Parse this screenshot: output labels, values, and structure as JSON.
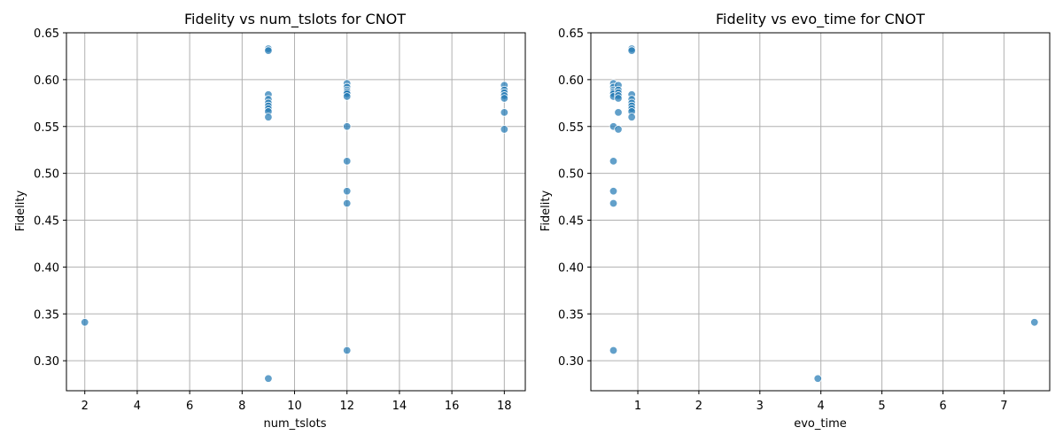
{
  "colors": {
    "marker": "#1f77b4",
    "grid": "#b0b0b0",
    "frame": "#000000"
  },
  "chart_data": [
    {
      "type": "scatter",
      "title": "Fidelity vs num_tslots for CNOT",
      "xlabel": "num_tslots",
      "ylabel": "Fidelity",
      "xlim": [
        1.3,
        18.8
      ],
      "ylim": [
        0.268,
        0.65
      ],
      "xticks": [
        2,
        4,
        6,
        8,
        10,
        12,
        14,
        16,
        18
      ],
      "yticks": [
        0.3,
        0.35,
        0.4,
        0.45,
        0.5,
        0.55,
        0.6,
        0.65
      ],
      "ytick_labels": [
        "0.30",
        "0.35",
        "0.40",
        "0.45",
        "0.50",
        "0.55",
        "0.60",
        "0.65"
      ],
      "grid": true,
      "marker_alpha": 0.7,
      "points": [
        [
          2,
          0.341
        ],
        [
          9,
          0.633
        ],
        [
          9,
          0.631
        ],
        [
          9,
          0.584
        ],
        [
          9,
          0.579
        ],
        [
          9,
          0.575
        ],
        [
          9,
          0.572
        ],
        [
          9,
          0.569
        ],
        [
          9,
          0.566
        ],
        [
          9,
          0.56
        ],
        [
          9,
          0.281
        ],
        [
          12,
          0.596
        ],
        [
          12,
          0.592
        ],
        [
          12,
          0.589
        ],
        [
          12,
          0.587
        ],
        [
          12,
          0.585
        ],
        [
          12,
          0.582
        ],
        [
          12,
          0.55
        ],
        [
          12,
          0.513
        ],
        [
          12,
          0.481
        ],
        [
          12,
          0.468
        ],
        [
          12,
          0.311
        ],
        [
          18,
          0.594
        ],
        [
          18,
          0.589
        ],
        [
          18,
          0.586
        ],
        [
          18,
          0.583
        ],
        [
          18,
          0.58
        ],
        [
          18,
          0.565
        ],
        [
          18,
          0.547
        ]
      ]
    },
    {
      "type": "scatter",
      "title": "Fidelity vs evo_time for CNOT",
      "xlabel": "evo_time",
      "ylabel": "Fidelity",
      "xlim": [
        0.23,
        7.75
      ],
      "ylim": [
        0.268,
        0.65
      ],
      "xticks": [
        1,
        2,
        3,
        4,
        5,
        6,
        7
      ],
      "yticks": [
        0.3,
        0.35,
        0.4,
        0.45,
        0.5,
        0.55,
        0.6,
        0.65
      ],
      "ytick_labels": [
        "0.30",
        "0.35",
        "0.40",
        "0.45",
        "0.50",
        "0.55",
        "0.60",
        "0.65"
      ],
      "grid": true,
      "marker_alpha": 0.7,
      "points": [
        [
          7.5,
          0.341
        ],
        [
          3.95,
          0.281
        ],
        [
          0.9,
          0.633
        ],
        [
          0.9,
          0.631
        ],
        [
          0.9,
          0.584
        ],
        [
          0.9,
          0.579
        ],
        [
          0.9,
          0.575
        ],
        [
          0.9,
          0.572
        ],
        [
          0.9,
          0.569
        ],
        [
          0.9,
          0.566
        ],
        [
          0.9,
          0.56
        ],
        [
          0.6,
          0.596
        ],
        [
          0.6,
          0.592
        ],
        [
          0.6,
          0.589
        ],
        [
          0.6,
          0.587
        ],
        [
          0.6,
          0.585
        ],
        [
          0.6,
          0.582
        ],
        [
          0.6,
          0.55
        ],
        [
          0.6,
          0.513
        ],
        [
          0.6,
          0.481
        ],
        [
          0.6,
          0.468
        ],
        [
          0.6,
          0.311
        ],
        [
          0.68,
          0.594
        ],
        [
          0.68,
          0.589
        ],
        [
          0.68,
          0.586
        ],
        [
          0.68,
          0.583
        ],
        [
          0.68,
          0.58
        ],
        [
          0.68,
          0.565
        ],
        [
          0.68,
          0.547
        ]
      ]
    }
  ]
}
